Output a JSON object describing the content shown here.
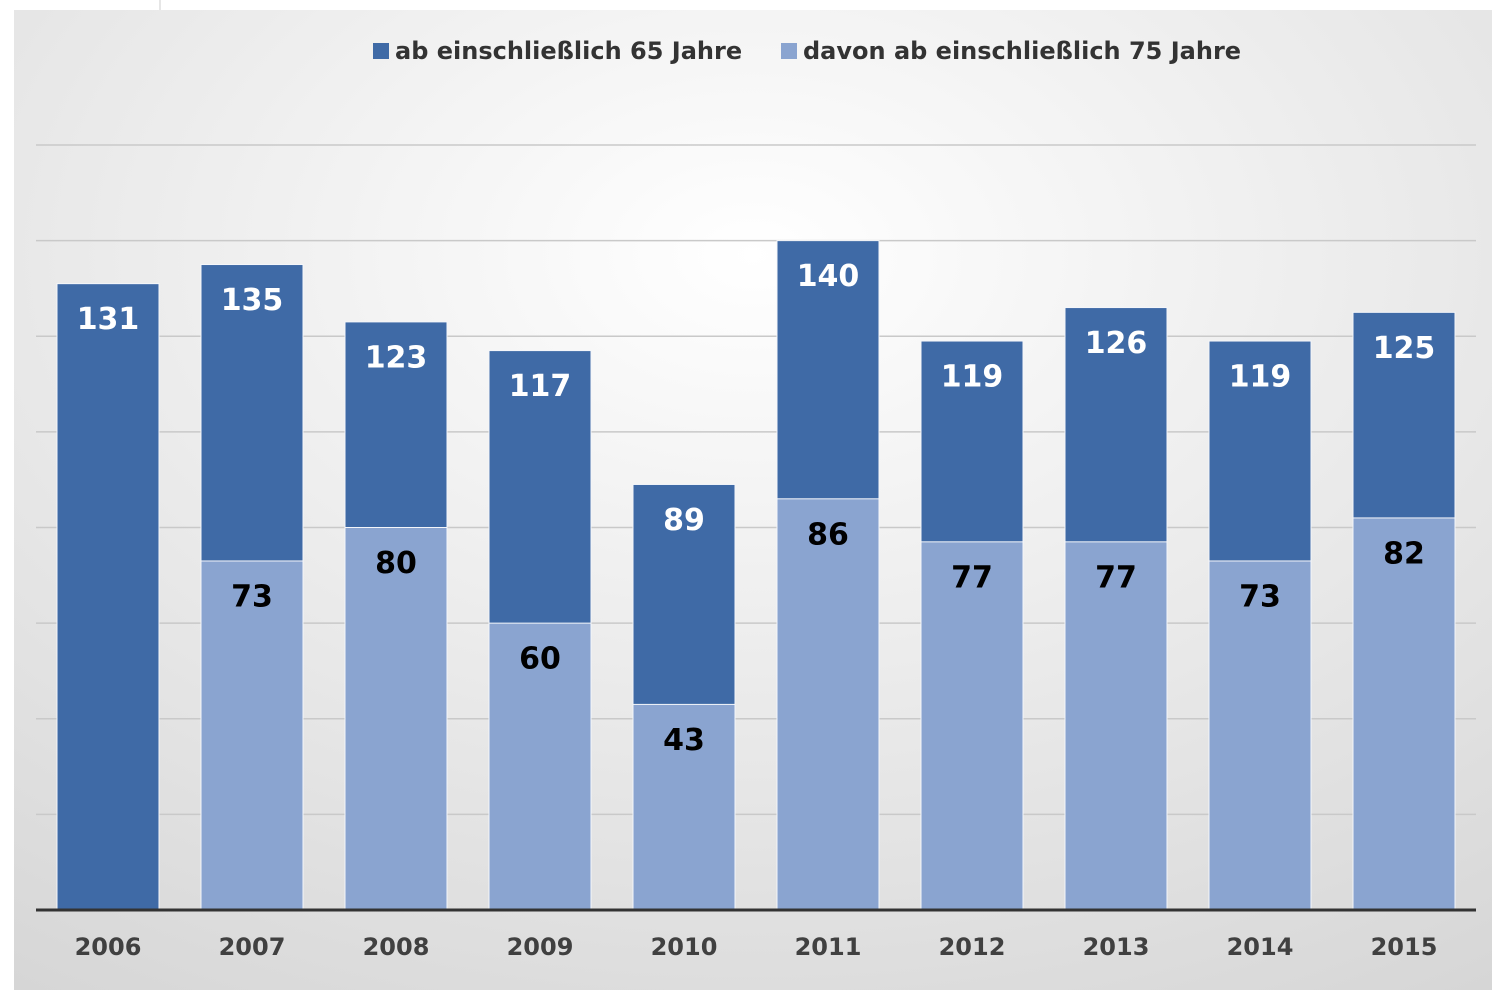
{
  "chart_data": {
    "type": "bar",
    "overlap": true,
    "categories": [
      "2006",
      "2007",
      "2008",
      "2009",
      "2010",
      "2011",
      "2012",
      "2013",
      "2014",
      "2015"
    ],
    "series": [
      {
        "name": "ab einschließlich 65 Jahre",
        "color": "#3f6aa6",
        "label_color": "#ffffff",
        "values": [
          131,
          135,
          123,
          117,
          89,
          140,
          119,
          126,
          119,
          125
        ]
      },
      {
        "name": "davon ab einschließlich 75 Jahre",
        "color": "#8aa4d0",
        "label_color": "#000000",
        "values": [
          null,
          73,
          80,
          60,
          43,
          86,
          77,
          77,
          73,
          82
        ]
      }
    ],
    "ylim": [
      0,
      160
    ],
    "yticks": [
      20,
      40,
      60,
      80,
      100,
      120,
      140,
      160
    ],
    "grid": true,
    "legend": "top"
  }
}
